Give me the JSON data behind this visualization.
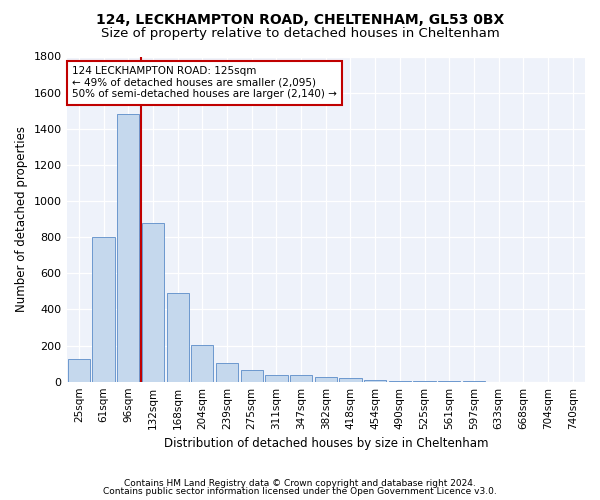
{
  "title1": "124, LECKHAMPTON ROAD, CHELTENHAM, GL53 0BX",
  "title2": "Size of property relative to detached houses in Cheltenham",
  "xlabel": "Distribution of detached houses by size in Cheltenham",
  "ylabel": "Number of detached properties",
  "categories": [
    "25sqm",
    "61sqm",
    "96sqm",
    "132sqm",
    "168sqm",
    "204sqm",
    "239sqm",
    "275sqm",
    "311sqm",
    "347sqm",
    "382sqm",
    "418sqm",
    "454sqm",
    "490sqm",
    "525sqm",
    "561sqm",
    "597sqm",
    "633sqm",
    "668sqm",
    "704sqm",
    "740sqm"
  ],
  "values": [
    125,
    800,
    1480,
    880,
    490,
    205,
    105,
    63,
    38,
    35,
    28,
    20,
    8,
    3,
    2,
    1,
    1,
    0,
    0,
    0,
    0
  ],
  "bar_color": "#c5d8ed",
  "bar_edge_color": "#5b8cc8",
  "vline_color": "#c00000",
  "annotation_line1": "124 LECKHAMPTON ROAD: 125sqm",
  "annotation_line2": "← 49% of detached houses are smaller (2,095)",
  "annotation_line3": "50% of semi-detached houses are larger (2,140) →",
  "annotation_box_color": "#c00000",
  "ylim_max": 1800,
  "yticks": [
    0,
    200,
    400,
    600,
    800,
    1000,
    1200,
    1400,
    1600,
    1800
  ],
  "bg_color": "#eef2fa",
  "footer1": "Contains HM Land Registry data © Crown copyright and database right 2024.",
  "footer2": "Contains public sector information licensed under the Open Government Licence v3.0.",
  "title1_fontsize": 10,
  "title2_fontsize": 9.5,
  "xlabel_fontsize": 8.5,
  "ylabel_fontsize": 8.5,
  "tick_fontsize": 8,
  "footer_fontsize": 6.5
}
